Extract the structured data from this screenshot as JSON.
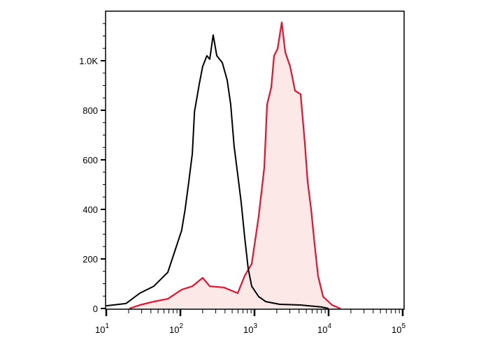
{
  "chart_data": {
    "type": "area",
    "title": "",
    "xlabel": "",
    "ylabel": "",
    "x_scale": "log",
    "xlim": [
      10,
      100000
    ],
    "ylim": [
      0,
      1200
    ],
    "grid": false,
    "x_tick_labels": [
      {
        "base": "10",
        "exp": "1"
      },
      {
        "base": "10",
        "exp": "2"
      },
      {
        "base": "10",
        "exp": "3"
      },
      {
        "base": "10",
        "exp": "4"
      },
      {
        "base": "10",
        "exp": "5"
      }
    ],
    "y_ticks": [
      0,
      200,
      400,
      600,
      800,
      1000
    ],
    "y_tick_labels": [
      "0",
      "200",
      "400",
      "600",
      "800",
      "1.0K"
    ],
    "series": [
      {
        "color": "#000000",
        "filled": false,
        "x": [
          10,
          18.4,
          28.4,
          43.8,
          67.6,
          84,
          104,
          116,
          130,
          145,
          155,
          180,
          200,
          228,
          249,
          277,
          310,
          368,
          429,
          478,
          532,
          594,
          662,
          738,
          823,
          917,
          1140,
          1416,
          2188,
          4198,
          8054,
          10000
        ],
        "y": [
          11,
          20,
          62,
          90,
          146,
          231,
          315,
          400,
          513,
          625,
          794,
          907,
          977,
          1020,
          1006,
          1104,
          1020,
          992,
          921,
          823,
          654,
          541,
          428,
          287,
          161,
          90,
          48,
          28,
          17,
          14,
          6,
          0
        ]
      },
      {
        "color": "#e8112d",
        "fill": "#fde8e8",
        "filled": true,
        "x": [
          20.5,
          28.4,
          43.8,
          67.6,
          104,
          145,
          200,
          249,
          385,
          594,
          738,
          917,
          1140,
          1355,
          1479,
          1683,
          1837,
          2048,
          2333,
          2600,
          3027,
          3524,
          4198,
          4777,
          5212,
          5808,
          6471,
          7211,
          8414,
          11150,
          14450
        ],
        "y": [
          0,
          14,
          28,
          39,
          76,
          90,
          124,
          90,
          85,
          62,
          132,
          180,
          372,
          569,
          823,
          893,
          1020,
          1048,
          1155,
          1034,
          977,
          879,
          865,
          668,
          513,
          400,
          259,
          132,
          48,
          14,
          0
        ]
      }
    ]
  }
}
